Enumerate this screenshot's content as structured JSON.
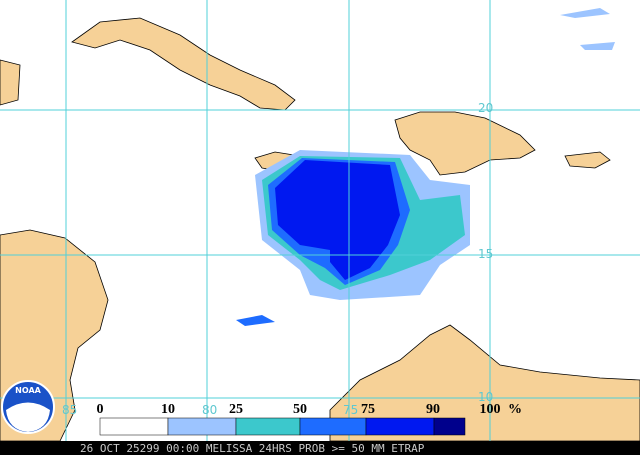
{
  "map": {
    "latitude_labels": [
      "20",
      "15",
      "10"
    ],
    "longitude_labels": [
      "85",
      "80",
      "75"
    ],
    "logo_text": "NOAA",
    "legend": {
      "labels": [
        "0",
        "10",
        "25",
        "50",
        "75",
        "90",
        "100"
      ],
      "unit": "%",
      "colors": [
        "#ffffff",
        "#9cc4ff",
        "#3cc8cc",
        "#1e6cff",
        "#0018f0",
        "#00008c"
      ]
    },
    "footer": "26 OCT 25299 00:00 MELISSA 24HRS PROB >= 50 MM ETRAP"
  }
}
